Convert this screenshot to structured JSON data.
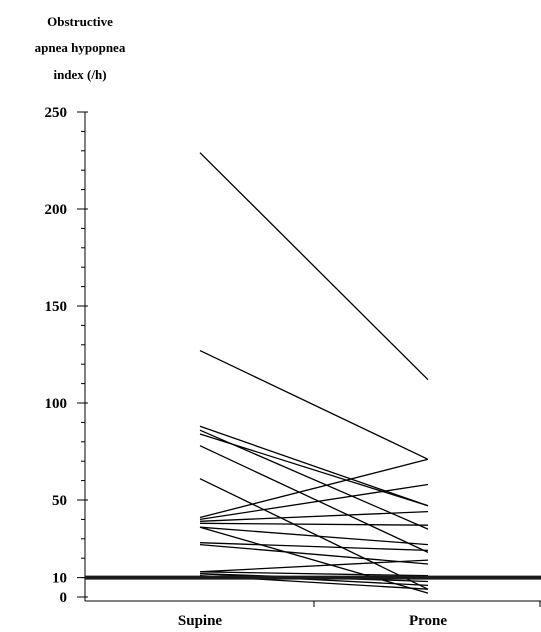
{
  "colors": {
    "line": "#000000",
    "threshold": "#1a1a1a",
    "background": "#ffffff"
  },
  "chart_data": {
    "type": "line",
    "title": "",
    "ylabel": "Obstructive apnea hypopnea index (/h)",
    "ylabel_lines": [
      "Obstructive",
      "apnea hypopnea",
      "index (/h)"
    ],
    "xlabel": "",
    "categories": [
      "Supine",
      "Prone"
    ],
    "ylim": [
      0,
      250
    ],
    "yticks": [
      0,
      10,
      50,
      100,
      150,
      200,
      250
    ],
    "yminor_step": 10,
    "grid": false,
    "legend": "none",
    "reference_line": {
      "y": 10
    },
    "series": [
      {
        "values": [
          229,
          112
        ]
      },
      {
        "values": [
          127,
          71
        ]
      },
      {
        "values": [
          88,
          47
        ]
      },
      {
        "values": [
          86,
          35
        ]
      },
      {
        "values": [
          84,
          47
        ]
      },
      {
        "values": [
          78,
          23
        ]
      },
      {
        "values": [
          61,
          4
        ]
      },
      {
        "values": [
          41,
          71
        ]
      },
      {
        "values": [
          40,
          58
        ]
      },
      {
        "values": [
          39,
          44
        ]
      },
      {
        "values": [
          38,
          37
        ]
      },
      {
        "values": [
          36,
          27
        ]
      },
      {
        "values": [
          36,
          2
        ]
      },
      {
        "values": [
          28,
          24
        ]
      },
      {
        "values": [
          27,
          17
        ]
      },
      {
        "values": [
          13,
          19
        ]
      },
      {
        "values": [
          13,
          11
        ]
      },
      {
        "values": [
          12,
          6
        ]
      },
      {
        "values": [
          12,
          8
        ]
      },
      {
        "values": [
          11,
          4
        ]
      }
    ]
  }
}
